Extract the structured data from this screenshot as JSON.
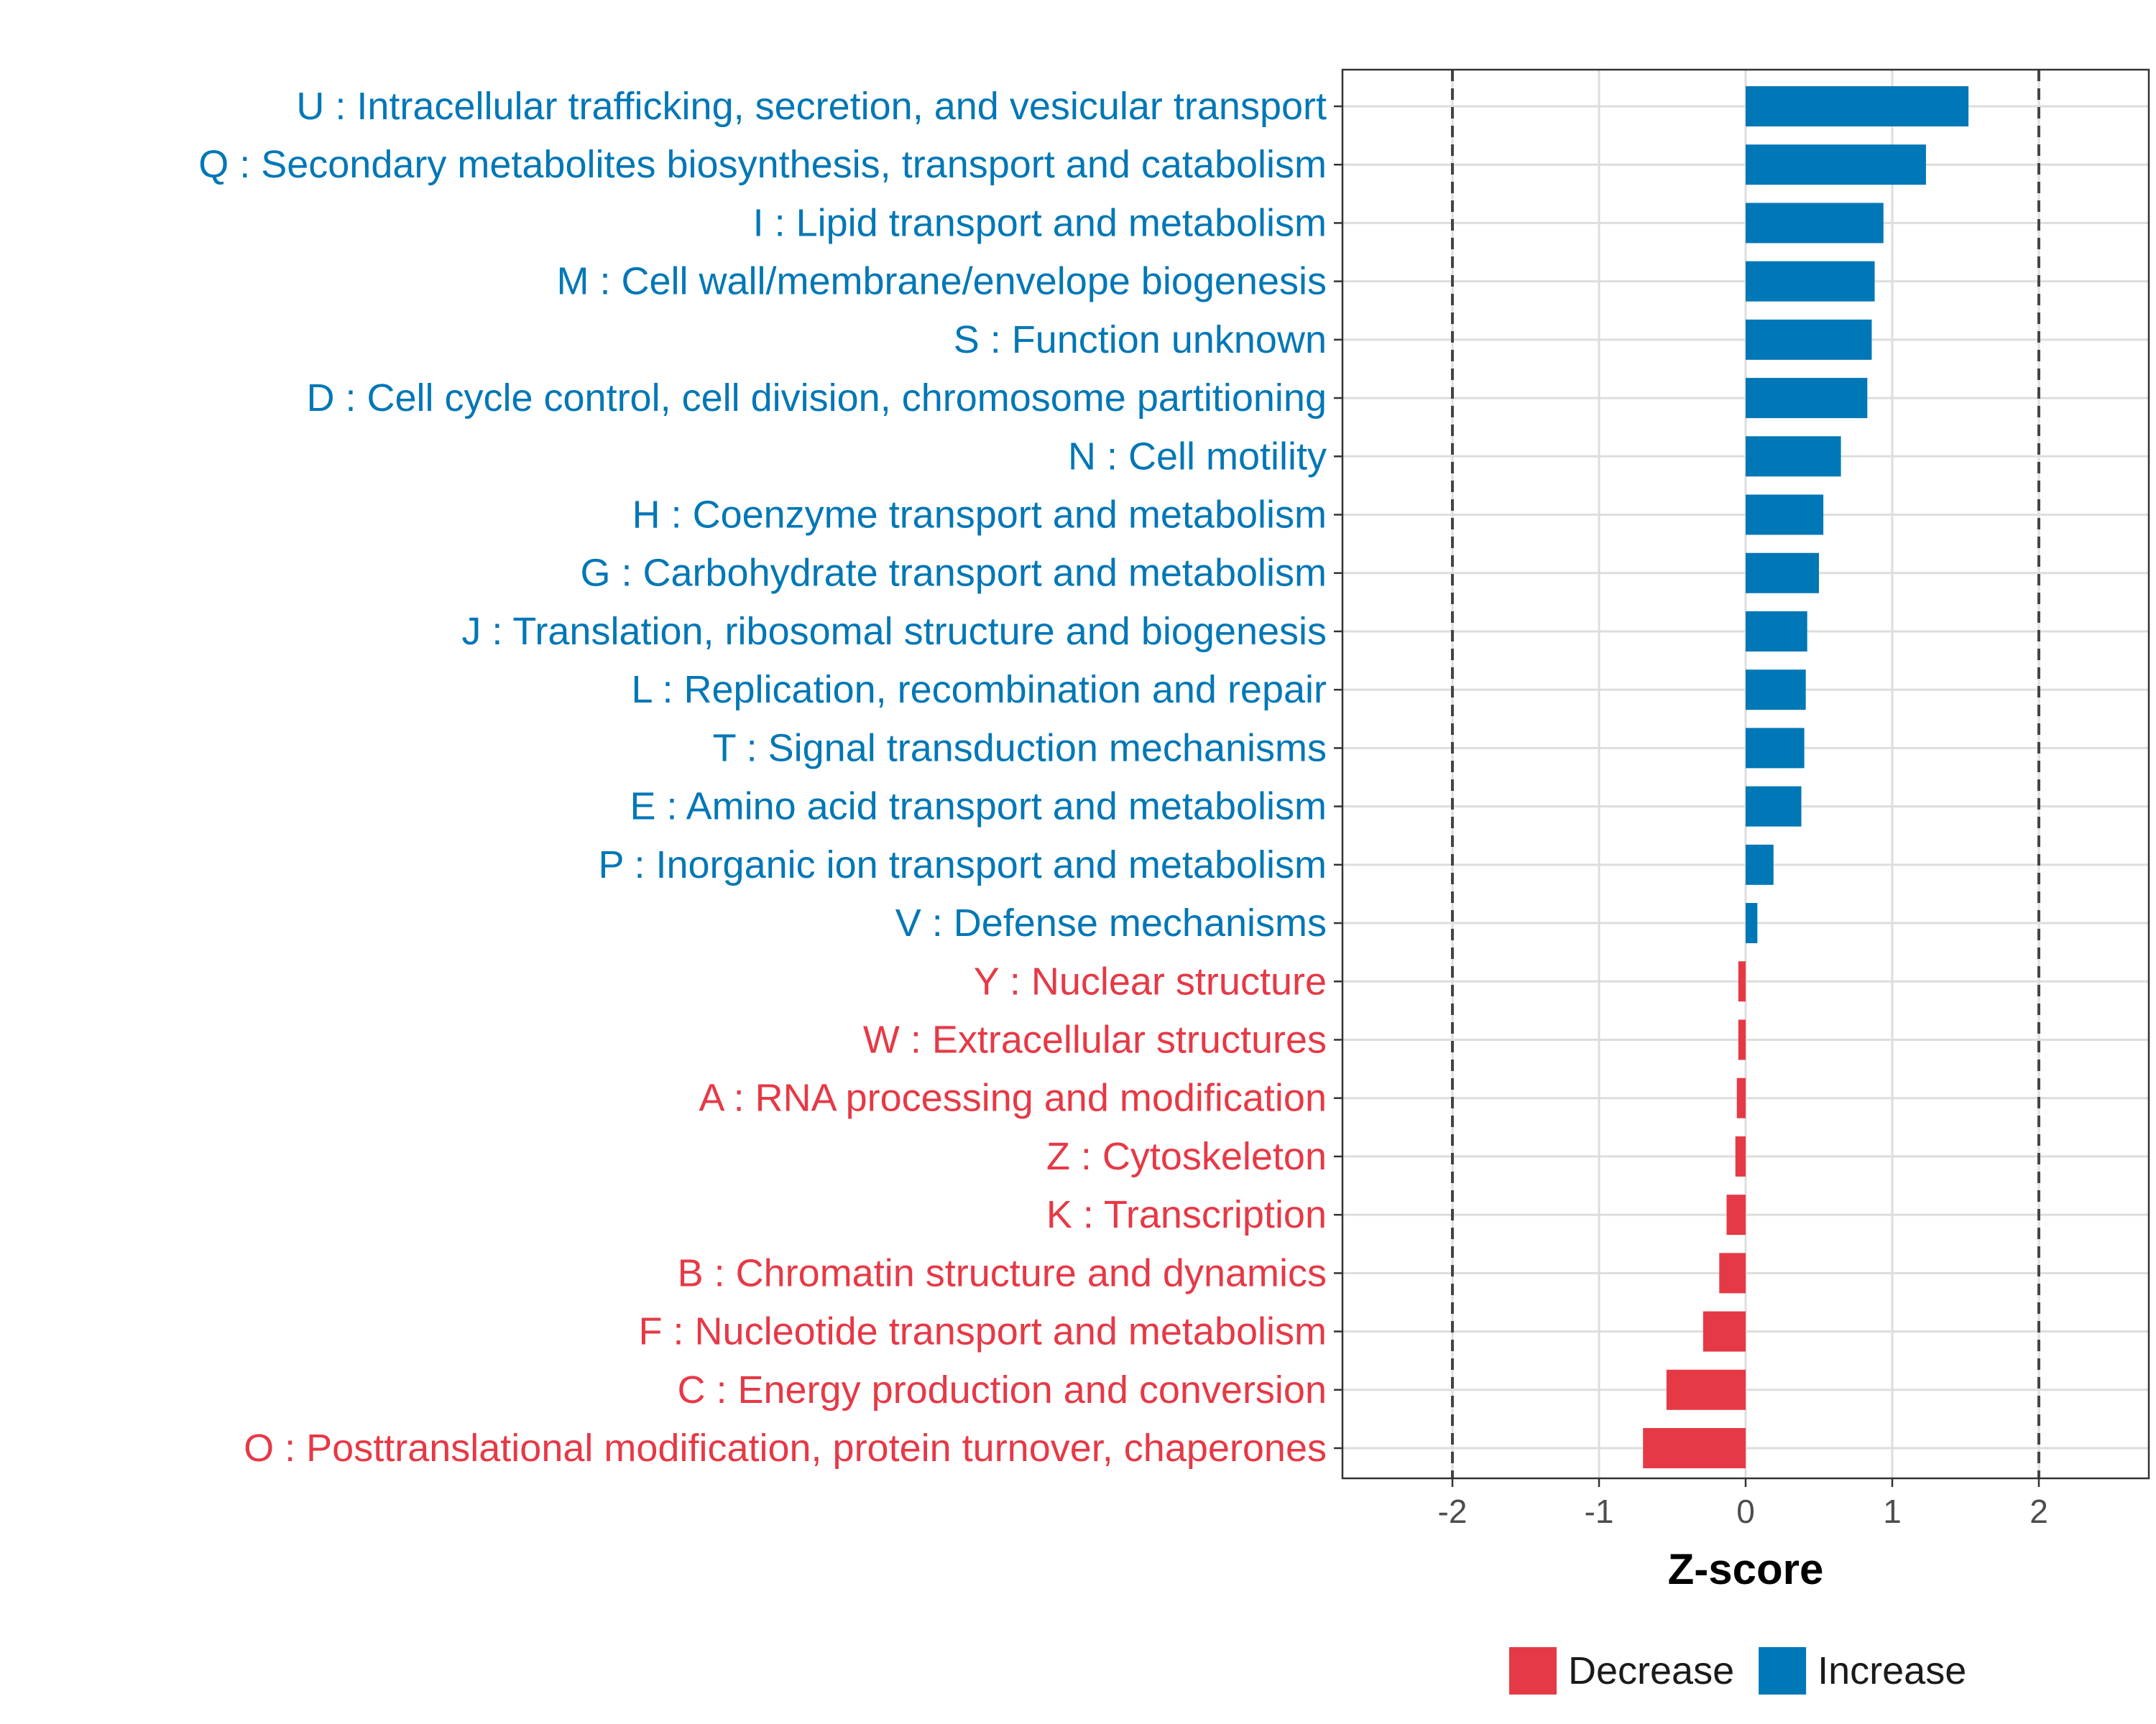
{
  "chart_data": {
    "type": "bar",
    "orientation": "horizontal",
    "xlabel": "Z-score",
    "xlim": [
      -2.75,
      2.75
    ],
    "xticks": [
      -2,
      -1,
      0,
      1,
      2
    ],
    "xtick_labels": [
      "-2",
      "-1",
      "0",
      "1",
      "2"
    ],
    "reference_lines": [
      -2,
      2
    ],
    "grid": true,
    "legend_position": "bottom",
    "colors": {
      "Decrease": "#e63946",
      "Increase": "#0077b6"
    },
    "legend": [
      {
        "name": "Decrease",
        "color": "#e63946"
      },
      {
        "name": "Increase",
        "color": "#0077b6"
      }
    ],
    "categories": [
      "U : Intracellular trafficking, secretion, and vesicular transport",
      "Q : Secondary metabolites biosynthesis, transport and catabolism",
      "I : Lipid transport and metabolism",
      "M : Cell wall/membrane/envelope biogenesis",
      "S : Function unknown",
      "D : Cell cycle control, cell division, chromosome partitioning",
      "N : Cell motility",
      "H : Coenzyme transport and metabolism",
      "G : Carbohydrate transport and metabolism",
      "J : Translation, ribosomal structure and biogenesis",
      "L : Replication, recombination and repair",
      "T : Signal transduction mechanisms",
      "E : Amino acid transport and metabolism",
      "P : Inorganic ion transport and metabolism",
      "V : Defense mechanisms",
      "Y : Nuclear structure",
      "W : Extracellular structures",
      "A : RNA processing and modification",
      "Z : Cytoskeleton",
      "K : Transcription",
      "B : Chromatin structure and dynamics",
      "F : Nucleotide transport and metabolism",
      "C : Energy production and conversion",
      "O : Posttranslational modification, protein turnover, chaperones"
    ],
    "values": [
      1.52,
      1.23,
      0.94,
      0.88,
      0.86,
      0.83,
      0.65,
      0.53,
      0.5,
      0.42,
      0.41,
      0.4,
      0.38,
      0.19,
      0.08,
      -0.05,
      -0.05,
      -0.06,
      -0.07,
      -0.13,
      -0.18,
      -0.29,
      -0.54,
      -0.7
    ],
    "groups": [
      "Increase",
      "Increase",
      "Increase",
      "Increase",
      "Increase",
      "Increase",
      "Increase",
      "Increase",
      "Increase",
      "Increase",
      "Increase",
      "Increase",
      "Increase",
      "Increase",
      "Increase",
      "Decrease",
      "Decrease",
      "Decrease",
      "Decrease",
      "Decrease",
      "Decrease",
      "Decrease",
      "Decrease",
      "Decrease"
    ]
  }
}
